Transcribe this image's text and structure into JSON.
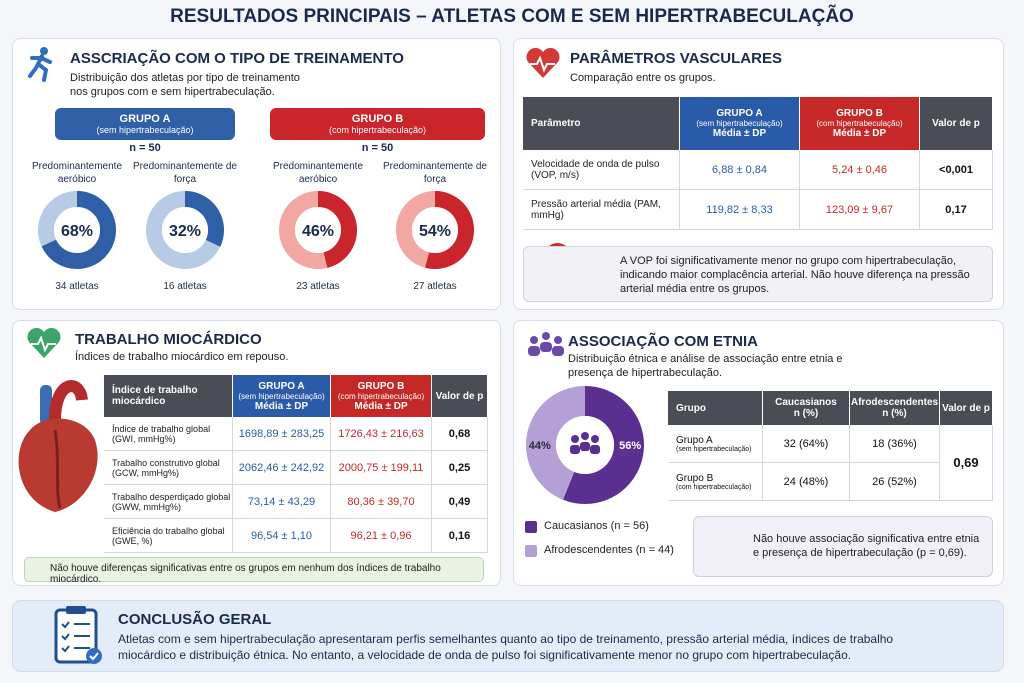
{
  "title": "RESULTADOS PRINCIPAIS – ATLETAS COM E SEM HIPERTRABECULAÇÃO",
  "training": {
    "title": "ASSCRIAÇÃO COM O TIPO DE TREINAMENTO",
    "subtitle": "Distribuição dos atletas por tipo de treinamento nos grupos com e sem hipertrabeculação.",
    "groups": [
      {
        "name": "GRUPO A",
        "note": "(sem hipertrabeculação)",
        "n": "n = 50",
        "color": "#2f5fa7",
        "light": "#b7cbe6",
        "donuts": [
          {
            "label": "Predominantemente aeróbico",
            "value": 68,
            "value_label": "68%",
            "count": "34 atletas"
          },
          {
            "label": "Predominantemente de força",
            "value": 32,
            "value_label": "32%",
            "count": "16 atletas"
          }
        ]
      },
      {
        "name": "GRUPO B",
        "note": "(com hipertrabeculação)",
        "n": "n = 50",
        "color": "#c9252b",
        "light": "#f3a7a3",
        "donuts": [
          {
            "label": "Predominantemente aeróbico",
            "value": 46,
            "value_label": "46%",
            "count": "23 atletas"
          },
          {
            "label": "Predominantemente de força",
            "value": 54,
            "value_label": "54%",
            "count": "27 atletas"
          }
        ]
      }
    ]
  },
  "vascular": {
    "title": "PARÂMETROS VASCULARES",
    "subtitle": "Comparação entre os grupos.",
    "columns": [
      [
        "Parâmetro"
      ],
      [
        "GRUPO A",
        "(sem hipertrabeculação)",
        "Média ± DP"
      ],
      [
        "GRUPO B",
        "(com hipertrabeculação)",
        "Média ± DP"
      ],
      [
        "Valor de p"
      ]
    ],
    "rows": [
      [
        "Velocidade de onda de pulso (VOP, m/s)",
        "6,88 ± 0,84",
        "5,24 ± 0,46",
        "<0,001"
      ],
      [
        "Pressão arterial média (PAM, mmHg)",
        "119,82 ± 8,33",
        "123,09 ± 9,67",
        "0,17"
      ]
    ],
    "note": "A VOP foi significativamente menor no grupo com hipertrabeculação, indicando maior complacência arterial. Não houve diferença na pressão arterial média entre os grupos."
  },
  "myocardial": {
    "title": "TRABALHO MIOCÁRDICO",
    "subtitle": "Índices de trabalho miocárdico em repouso.",
    "columns": [
      [
        "Índice de trabalho miocárdico"
      ],
      [
        "GRUPO A",
        "(sem hipertrabeculação)",
        "Média ± DP"
      ],
      [
        "GRUPO B",
        "(com hipertrabeculação)",
        "Média ± DP"
      ],
      [
        "Valor de p"
      ]
    ],
    "rows": [
      [
        "Índice de trabalho global (GWI, mmHg%)",
        "1698,89 ± 283,25",
        "1726,43 ± 216,63",
        "0,68"
      ],
      [
        "Trabalho construtivo global (GCW, mmHg%)",
        "2062,46 ± 242,92",
        "2000,75 ± 199,11",
        "0,25"
      ],
      [
        "Trabalho desperdiçado global (GWW, mmHg%)",
        "73,14 ± 43,29",
        "80,36 ± 39,70",
        "0,49"
      ],
      [
        "Eficiência do trabalho global (GWE, %)",
        "96,54 ± 1,10",
        "96,21 ± 0,96",
        "0,16"
      ]
    ],
    "note": "Não houve diferenças significativas entre os grupos em nenhum dos índices de trabalho miocárdico."
  },
  "ethnicity": {
    "title": "ASSOCIAÇÃO COM ETNIA",
    "subtitle": "Distribuição étnica e análise de associação entre etnia e presença de hipertrabeculação.",
    "series": [
      {
        "name": "Caucasianos (n = 56)",
        "color": "#5b2f8f",
        "value": 56,
        "value_label": "56%"
      },
      {
        "name": "Afrodescendentes (n = 44)",
        "color": "#b49fd6",
        "value": 44,
        "value_label": "44%"
      }
    ],
    "columns": [
      [
        "Grupo"
      ],
      [
        "Caucasianos",
        "n (%)"
      ],
      [
        "Afrodescendentes",
        "n (%)"
      ],
      [
        "Valor de p"
      ]
    ],
    "rows": [
      [
        [
          "Grupo A",
          "(sem hipertrabeculação)"
        ],
        "32 (64%)",
        "18 (36%)"
      ],
      [
        [
          "Grupo B",
          "(com hipertrabeculação)"
        ],
        "24 (48%)",
        "26 (52%)"
      ]
    ],
    "p_value": "0,69",
    "note": "Não houve associação significativa entre etnia e presença de hipertrabeculação (p = 0,69)."
  },
  "conclusion": {
    "title": "CONCLUSÃO GERAL",
    "text": "Atletas com e sem hipertrabeculação apresentaram perfis semelhantes quanto ao tipo de treinamento, pressão arterial média, índices de trabalho miocárdico e distribuição étnica. No entanto, a velocidade de onda de pulso foi significativamente menor no grupo com hipertrabeculação."
  }
}
